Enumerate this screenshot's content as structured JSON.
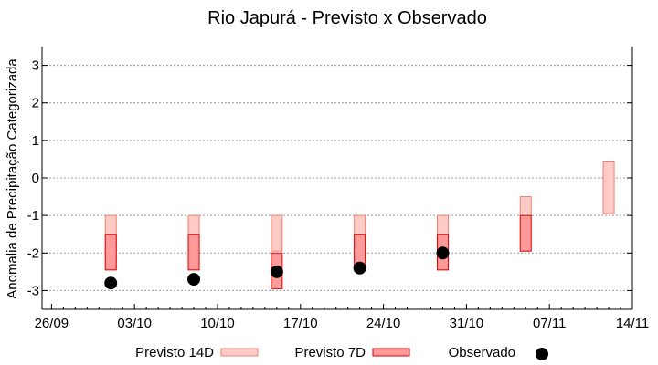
{
  "chart_data": {
    "type": "bar",
    "title": "Rio Japurá - Previsto x Observado",
    "ylabel": "Anomalia de Precipitação Categorizada",
    "xlabel": "",
    "ylim": [
      -3.5,
      3.5
    ],
    "yticks": [
      3,
      2,
      1,
      0,
      -1,
      -2,
      -3
    ],
    "ytick_labels": [
      "3",
      "2",
      "1",
      "0",
      "-1",
      "-2",
      "-3"
    ],
    "xlim_days": [
      -0.8,
      49
    ],
    "xticks_days": [
      0,
      7,
      14,
      21,
      28,
      35,
      42,
      49
    ],
    "xtick_labels": [
      "26/09",
      "03/10",
      "10/10",
      "17/10",
      "24/10",
      "31/10",
      "07/11",
      "14/11"
    ],
    "grid": true,
    "legend": {
      "placement": "bottom",
      "entries": [
        "Previsto 14D",
        "Previsto 7D",
        "Observado"
      ]
    },
    "colors": {
      "p14_fill": "#fecbc6",
      "p14_edge": "#f08070",
      "p7_fill": "#fe9a9a",
      "p7_edge": "#e00000",
      "obs": "#000000"
    },
    "dates": [
      "01/10",
      "08/10",
      "15/10",
      "22/10",
      "29/10",
      "05/11",
      "12/11"
    ],
    "days": [
      5,
      12,
      19,
      26,
      33,
      40,
      47
    ],
    "series": [
      {
        "name": "Previsto 14D",
        "ranges": [
          [
            -2.45,
            -1
          ],
          [
            -2.45,
            -1
          ],
          [
            -1.95,
            -1
          ],
          [
            -2.4,
            -1
          ],
          [
            -2.45,
            -1
          ],
          [
            -1,
            -0.5
          ],
          [
            -0.95,
            0.45
          ]
        ]
      },
      {
        "name": "Previsto 7D",
        "ranges": [
          [
            -2.45,
            -1.5
          ],
          [
            -2.45,
            -1.5
          ],
          [
            -2.95,
            -2
          ],
          [
            -2.4,
            -1.5
          ],
          [
            -2.45,
            -1.5
          ],
          [
            -1.95,
            -1
          ],
          null
        ]
      },
      {
        "name": "Observado",
        "values": [
          -2.8,
          -2.7,
          -2.5,
          -2.4,
          -2.0,
          null,
          null
        ]
      }
    ]
  }
}
